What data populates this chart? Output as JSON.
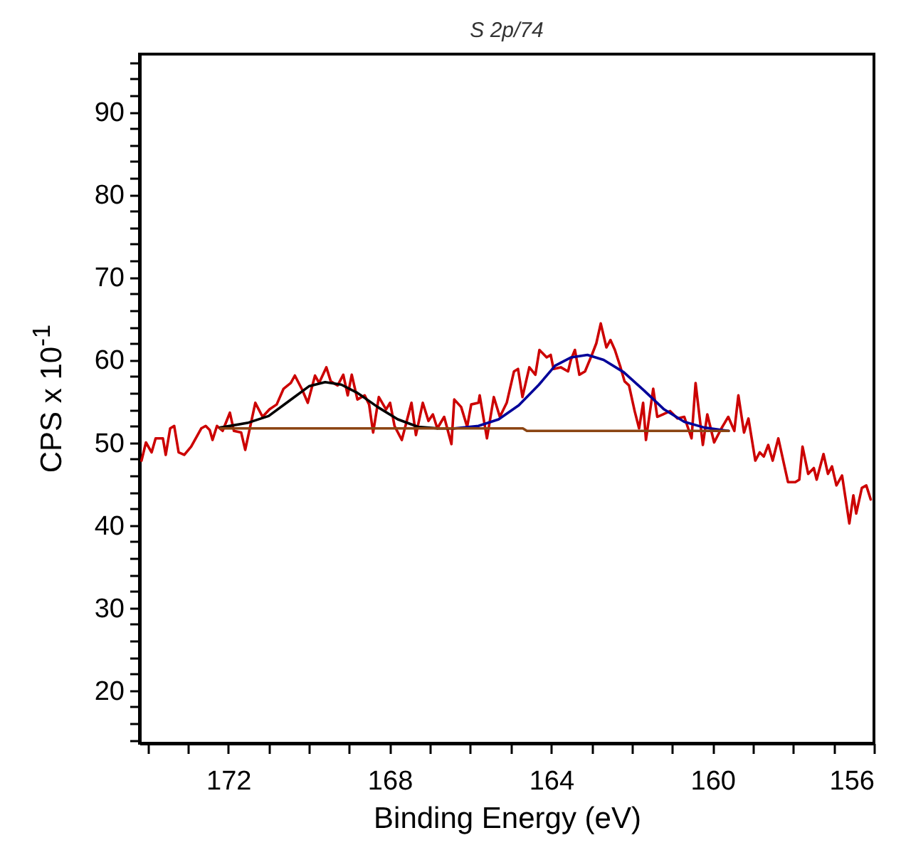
{
  "chart_data": {
    "type": "line",
    "title": "S 2p/74",
    "xlabel": "Binding Energy (eV)",
    "ylabel": "CPS x 10$^{-1}$",
    "xlim": [
      174.2,
      156
    ],
    "ylim": [
      13.6,
      97
    ],
    "xticks": [
      {
        "value": 174,
        "label": null
      },
      {
        "value": 173,
        "label": null
      },
      172,
      {
        "value": 171,
        "label": null
      },
      {
        "value": 170,
        "label": null
      },
      {
        "value": 169,
        "label": null
      },
      168,
      {
        "value": 167,
        "label": null
      },
      {
        "value": 166,
        "label": null
      },
      {
        "value": 165,
        "label": null
      },
      164,
      {
        "value": 163,
        "label": null
      },
      {
        "value": 162,
        "label": null
      },
      {
        "value": 161,
        "label": null
      },
      160,
      {
        "value": 159,
        "label": null
      },
      {
        "value": 158,
        "label": null
      },
      {
        "value": 157,
        "label": null
      },
      156
    ],
    "yticks": [
      {
        "value": 14,
        "label": null
      },
      {
        "value": 16,
        "label": null
      },
      {
        "value": 18,
        "label": null
      },
      20,
      {
        "value": 22,
        "label": null
      },
      {
        "value": 24,
        "label": null
      },
      {
        "value": 26,
        "label": null
      },
      {
        "value": 28,
        "label": null
      },
      30,
      {
        "value": 32,
        "label": null
      },
      {
        "value": 34,
        "label": null
      },
      {
        "value": 36,
        "label": null
      },
      {
        "value": 38,
        "label": null
      },
      40,
      {
        "value": 42,
        "label": null
      },
      {
        "value": 44,
        "label": null
      },
      {
        "value": 46,
        "label": null
      },
      {
        "value": 48,
        "label": null
      },
      50,
      {
        "value": 52,
        "label": null
      },
      {
        "value": 54,
        "label": null
      },
      {
        "value": 56,
        "label": null
      },
      {
        "value": 58,
        "label": null
      },
      60,
      {
        "value": 62,
        "label": null
      },
      {
        "value": 64,
        "label": null
      },
      {
        "value": 66,
        "label": null
      },
      {
        "value": 68,
        "label": null
      },
      70,
      {
        "value": 72,
        "label": null
      },
      {
        "value": 74,
        "label": null
      },
      {
        "value": 76,
        "label": null
      },
      {
        "value": 78,
        "label": null
      },
      80,
      {
        "value": 82,
        "label": null
      },
      {
        "value": 84,
        "label": null
      },
      {
        "value": 86,
        "label": null
      },
      {
        "value": 88,
        "label": null
      },
      90,
      {
        "value": 92,
        "label": null
      },
      {
        "value": 94,
        "label": null
      },
      {
        "value": 96,
        "label": null
      }
    ],
    "grid": false,
    "legend": false,
    "marker": "none",
    "line_style": "solid",
    "series": [
      {
        "color": "#cc0000",
        "x": [
          174.15,
          174.04,
          173.9,
          173.8,
          173.62,
          173.55,
          173.44,
          173.34,
          173.23,
          173.09,
          172.92,
          172.67,
          172.56,
          172.46,
          172.39,
          172.28,
          172.14,
          171.96,
          171.86,
          171.68,
          171.58,
          171.33,
          171.15,
          170.98,
          170.8,
          170.63,
          170.45,
          170.35,
          170.17,
          170.03,
          169.85,
          169.75,
          169.57,
          169.46,
          169.29,
          169.15,
          169.04,
          168.94,
          168.8,
          168.62,
          168.51,
          168.41,
          168.27,
          168.09,
          167.99,
          167.88,
          167.7,
          167.46,
          167.35,
          167.18,
          167.04,
          166.93,
          166.82,
          166.65,
          166.47,
          166.4,
          166.23,
          166.08,
          165.98,
          165.8,
          165.77,
          165.59,
          165.42,
          165.27,
          165.1,
          164.92,
          164.82,
          164.71,
          164.54,
          164.39,
          164.29,
          164.11,
          164.01,
          163.94,
          163.76,
          163.58,
          163.51,
          163.41,
          163.3,
          163.16,
          162.99,
          162.88,
          162.77,
          162.63,
          162.53,
          162.42,
          162.28,
          162.18,
          162.07,
          161.93,
          161.82,
          161.72,
          161.65,
          161.47,
          161.37,
          161.23,
          161.05,
          160.87,
          160.7,
          160.52,
          160.42,
          160.24,
          160.13,
          159.96,
          159.78,
          159.61,
          159.46,
          159.36,
          159.22,
          159.11,
          158.94,
          158.83,
          158.73,
          158.62,
          158.51,
          158.37,
          158.23,
          158.13,
          157.95,
          157.85,
          157.77,
          157.63,
          157.49,
          157.42,
          157.25,
          157.14,
          157.04,
          156.93,
          156.79,
          156.61,
          156.51,
          156.44,
          156.3,
          156.19,
          156.08
        ],
        "values": [
          47.8,
          50,
          48.8,
          50.5,
          50.5,
          48.5,
          51.7,
          52,
          48.8,
          48.5,
          49.5,
          51.7,
          52,
          51.5,
          50.3,
          52,
          51.4,
          53.6,
          51.4,
          51.2,
          49.1,
          54.8,
          53.1,
          54,
          54.6,
          56.5,
          57.2,
          58.1,
          56.4,
          54.8,
          58.1,
          57.2,
          59.1,
          57.4,
          56.9,
          58.2,
          55.7,
          58.2,
          55.2,
          55.7,
          54.6,
          51.2,
          55.5,
          54,
          54.8,
          52,
          50.3,
          54.8,
          50.9,
          54.8,
          52.6,
          53.4,
          51.7,
          53.1,
          49.8,
          55.2,
          54.3,
          51.9,
          54.6,
          54.8,
          55.7,
          50.5,
          55.5,
          53.1,
          54.8,
          58.6,
          58.9,
          55.5,
          59.1,
          58.2,
          61.2,
          60.3,
          60.6,
          58.9,
          59.1,
          58.6,
          60,
          61.2,
          58.2,
          58.6,
          60.6,
          62,
          64.4,
          61.5,
          62.4,
          61.2,
          59.1,
          57.4,
          56.9,
          53.8,
          51.7,
          54.8,
          50.3,
          56.5,
          53.1,
          53.4,
          53.8,
          52.9,
          53.1,
          50.5,
          57.2,
          49.7,
          53.4,
          50,
          51.7,
          53.1,
          51.4,
          55.7,
          51.2,
          52.9,
          47.8,
          48.8,
          48.3,
          49.7,
          47.8,
          50.5,
          47.4,
          45.2,
          45.2,
          45.5,
          49.5,
          46.2,
          46.9,
          45.5,
          48.6,
          46.2,
          47.1,
          44.8,
          46,
          40.2,
          43.6,
          41.4,
          44.5,
          44.8,
          43.1
        ]
      },
      {
        "color": "#000000",
        "x": [
          172.2,
          171.5,
          171,
          170.5,
          170,
          169.6,
          169.2,
          168.8,
          168.3,
          167.8,
          167.3,
          166.8,
          166.4
        ],
        "values": [
          51.8,
          52.4,
          53.2,
          55,
          56.8,
          57.3,
          57,
          56,
          54.3,
          52.8,
          51.9,
          51.7,
          51.7
        ]
      },
      {
        "color": "#000099",
        "x": [
          166.4,
          165.8,
          165.3,
          164.8,
          164.3,
          163.9,
          163.5,
          163.1,
          162.7,
          162.2,
          161.7,
          161.2,
          160.7,
          160.2,
          159.6
        ],
        "values": [
          51.7,
          52,
          52.8,
          54.5,
          57,
          59.3,
          60.3,
          60.6,
          60,
          58.5,
          56.3,
          54,
          52.5,
          51.8,
          51.4
        ]
      },
      {
        "color": "#8b4513",
        "x": [
          172.2,
          164.7,
          164.6,
          159.6
        ],
        "values": [
          51.7,
          51.7,
          51.4,
          51.4
        ]
      }
    ]
  }
}
